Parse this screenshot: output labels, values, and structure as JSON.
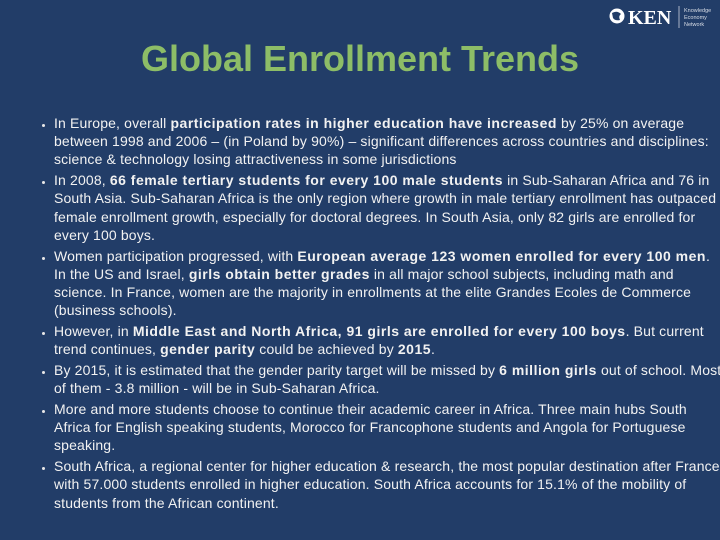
{
  "logo": {
    "name": "KEN",
    "tagline": [
      "Knowledge",
      "Economy",
      "Network"
    ]
  },
  "title": "Global Enrollment Trends",
  "bullets": [
    [
      {
        "text": "In Europe, overall "
      },
      {
        "text": "participation rates in higher education have increased",
        "bold": true
      },
      {
        "text": " by 25% on average between 1998 and 2006 – (in Poland by  90%) – significant differences across countries and disciplines: science & technology losing attractiveness in some jurisdictions"
      }
    ],
    [
      {
        "text": "In 2008, "
      },
      {
        "text": "66 female tertiary students for every 100 male students",
        "bold": true
      },
      {
        "text": " in Sub-Saharan Africa and 76 in South Asia.  Sub-Saharan Africa is the only region where growth in male tertiary enrollment has outpaced female enrollment growth, especially for doctoral degrees. In South Asia, only 82 girls are enrolled for every 100 boys."
      }
    ],
    [
      {
        "text": "Women participation progressed, with "
      },
      {
        "text": "European average 123 women enrolled for every 100 men",
        "bold": true
      },
      {
        "text": ". In the US and Israel, "
      },
      {
        "text": "girls obtain better grades",
        "bold": true
      },
      {
        "text": " in all major school subjects, including math and science. In France, women are the majority in enrollments at the elite Grandes Ecoles de Commerce  (business schools)."
      }
    ],
    [
      {
        "text": "However, in "
      },
      {
        "text": "Middle East and North Africa, 91 girls are enrolled for every 100 boys",
        "bold": true
      },
      {
        "text": ".  But current trend continues, "
      },
      {
        "text": "gender parity",
        "bold": true
      },
      {
        "text": " could be achieved by "
      },
      {
        "text": "2015",
        "bold": true
      },
      {
        "text": "."
      }
    ],
    [
      {
        "text": "By 2015, it is estimated that the gender parity target will be missed by "
      },
      {
        "text": "6 million girls",
        "bold": true
      },
      {
        "text": " out of school.  Most of them - 3.8 million - will be in Sub-Saharan Africa."
      }
    ],
    [
      {
        "text": "More and more students choose to continue their academic career in Africa. Three main hubs South Africa for English speaking students, Morocco for Francophone students and Angola for Portuguese speaking."
      }
    ],
    [
      {
        "text": "South Africa, a regional center for higher education & research, the most popular destination after France, with 57.000 students enrolled in higher education. South Africa accounts for 15.1% of the mobility of students from the African continent."
      }
    ]
  ]
}
